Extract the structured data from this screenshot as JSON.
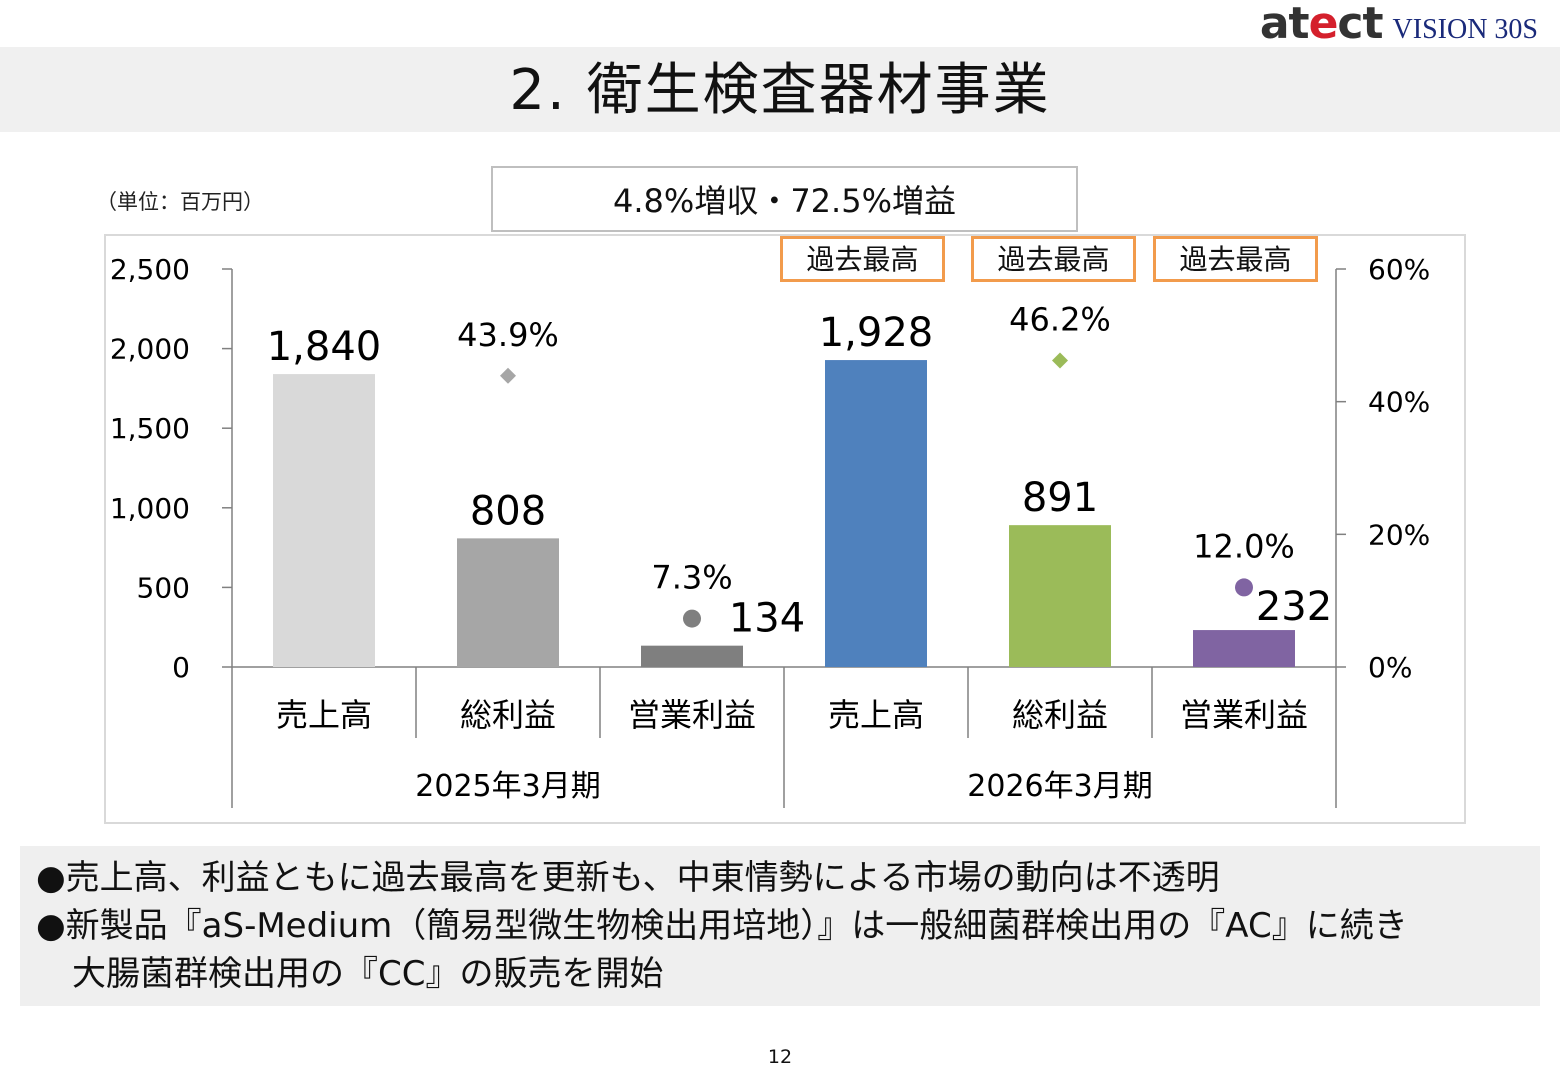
{
  "logo": {
    "main_prefix": "at",
    "main_e": "e",
    "main_suffix": "ct",
    "sub": "VISION 30S"
  },
  "title": "2. 衛生検査器材事業",
  "unit_label": "（単位：百万円）",
  "highlight": "4.8%増収・72.5%増益",
  "record_badges": [
    "過去最高",
    "過去最高",
    "過去最高"
  ],
  "bullets": {
    "b1": "●売上高、利益ともに過去最高を更新も、中東情勢による市場の動向は不透明",
    "b2": "●新製品『aS-Medium（簡易型微生物検出用培地）』は一般細菌群検出用の『AC』に続き",
    "b2_cont": "大腸菌群検出用の『CC』の販売を開始"
  },
  "page_number": "12",
  "chart_data": {
    "type": "bar",
    "categories": [
      "売上高",
      "総利益",
      "営業利益",
      "売上高",
      "総利益",
      "営業利益"
    ],
    "groups": [
      {
        "label": "2025年3月期",
        "span": [
          0,
          2
        ]
      },
      {
        "label": "2026年3月期",
        "span": [
          3,
          5
        ]
      }
    ],
    "values": [
      1840,
      808,
      134,
      1928,
      891,
      232
    ],
    "value_labels": [
      "1,840",
      "808",
      "134",
      "1,928",
      "891",
      "232"
    ],
    "bar_colors": [
      "#d9d9d9",
      "#a6a6a6",
      "#7f7f7f",
      "#4f81bd",
      "#9bbb59",
      "#8064a2"
    ],
    "margins": [
      {
        "category_index": 1,
        "value": 43.9,
        "label": "43.9%",
        "marker": "diamond",
        "color": "#a6a6a6"
      },
      {
        "category_index": 2,
        "value": 7.3,
        "label": "7.3%",
        "marker": "circle",
        "color": "#7f7f7f"
      },
      {
        "category_index": 4,
        "value": 46.2,
        "label": "46.2%",
        "marker": "diamond",
        "color": "#9bbb59"
      },
      {
        "category_index": 5,
        "value": 12.0,
        "label": "12.0%",
        "marker": "circle",
        "color": "#8064a2"
      }
    ],
    "y_left": {
      "min": 0,
      "max": 2500,
      "ticks": [
        0,
        500,
        1000,
        1500,
        2000,
        2500
      ],
      "tick_labels": [
        "0",
        "500",
        "1,000",
        "1,500",
        "2,000",
        "2,500"
      ]
    },
    "y_right": {
      "min": 0,
      "max": 60,
      "ticks": [
        0,
        20,
        40,
        60
      ],
      "tick_labels": [
        "0%",
        "20%",
        "40%",
        "60%"
      ]
    },
    "record_high_indices": [
      3,
      4,
      5
    ],
    "grid": false,
    "legend": "none"
  }
}
